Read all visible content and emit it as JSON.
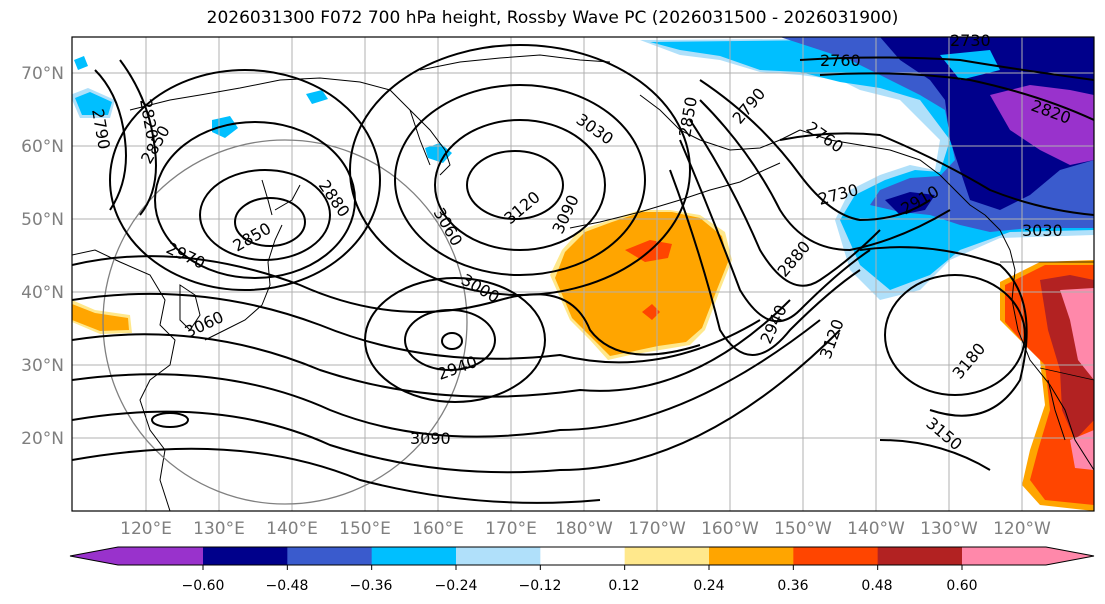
{
  "title": "2026031300 F072 700 hPa height, Rossby Wave PC (2026031500 - 2026031900)",
  "lat_labels": [
    "70°N",
    "60°N",
    "50°N",
    "40°N",
    "30°N",
    "20°N"
  ],
  "lon_labels": [
    "120°E",
    "130°E",
    "140°E",
    "150°E",
    "160°E",
    "170°E",
    "180°W",
    "170°W",
    "160°W",
    "150°W",
    "140°W",
    "130°W",
    "120°W"
  ],
  "contour_labels": [
    "2760",
    "2730",
    "2820",
    "2790",
    "2850",
    "2790",
    "2820",
    "2850",
    "2880",
    "2850",
    "2970",
    "3060",
    "3030",
    "3120",
    "3090",
    "3000",
    "2940",
    "3090",
    "3060",
    "2880",
    "2940",
    "3120",
    "2760",
    "2730",
    "2910",
    "3030",
    "3180",
    "3150"
  ],
  "colorbar": {
    "colors": [
      "#9932cc",
      "#00008b",
      "#3a5bcd",
      "#00bfff",
      "#b0e0fa",
      "#ffffff",
      "#ffe88c",
      "#ffa500",
      "#ff4500",
      "#b22222",
      "#ff88aa"
    ],
    "tick_labels": [
      "−0.60",
      "−0.48",
      "−0.36",
      "−0.24",
      "−0.12",
      "0.12",
      "0.24",
      "0.36",
      "0.48",
      "0.60"
    ]
  }
}
